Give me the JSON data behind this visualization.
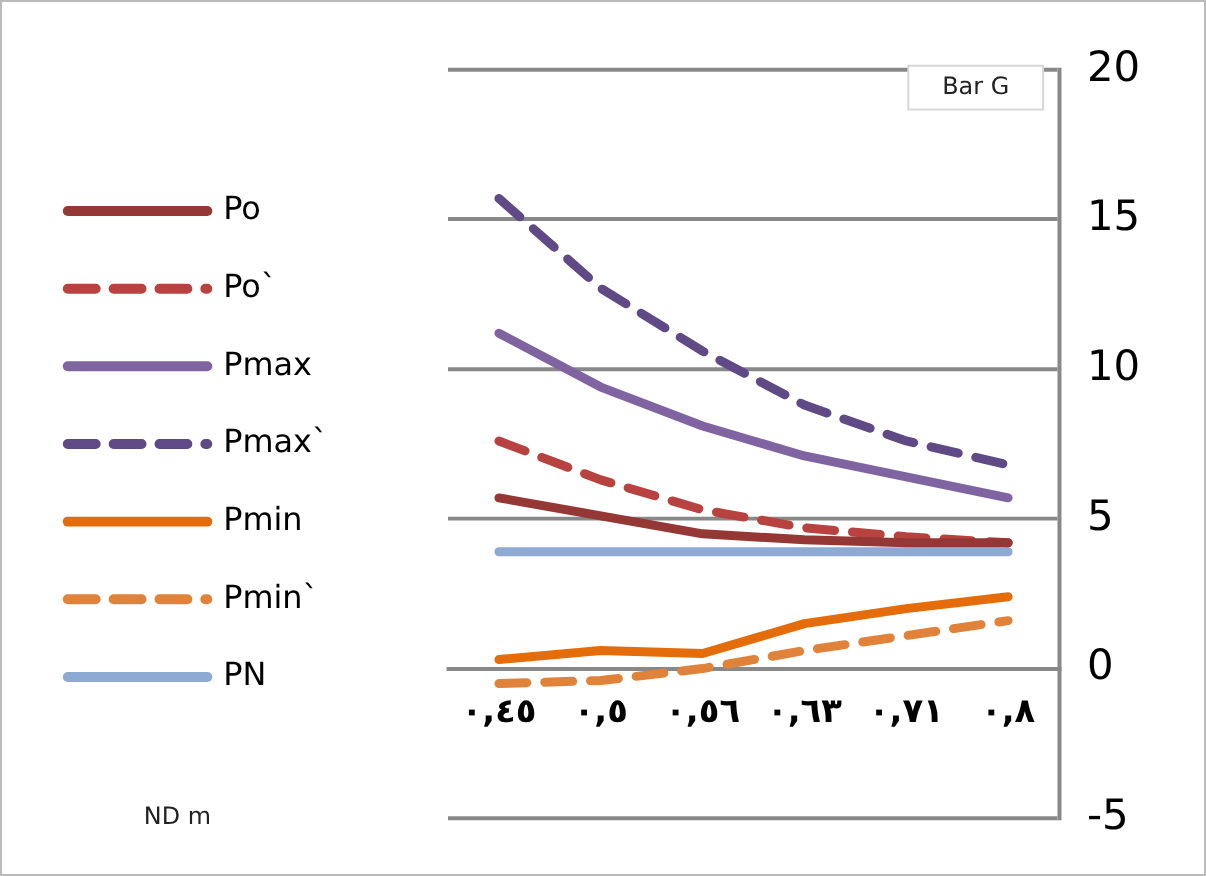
{
  "chart_data": {
    "type": "line",
    "annotations": [
      "ND m"
    ],
    "ylabel": "Bar G",
    "categories": [
      "٠,٤٥",
      "٠,٥",
      "٠,٥٦",
      "٠,٦٣",
      "٠,٧١",
      "٠,٨"
    ],
    "series": [
      {
        "name": "Po",
        "color": "#953735",
        "line_style": "solid",
        "values": [
          5.7,
          5.1,
          4.5,
          4.3,
          4.2,
          4.2
        ]
      },
      {
        "name": "Po`",
        "color": "#b7423f",
        "line_style": "dashed",
        "values": [
          7.6,
          6.3,
          5.3,
          4.7,
          4.4,
          4.2
        ]
      },
      {
        "name": "Pmax",
        "color": "#8064a2",
        "line_style": "solid",
        "values": [
          11.2,
          9.4,
          8.1,
          7.1,
          6.4,
          5.7
        ]
      },
      {
        "name": "Pmax`",
        "color": "#604a86",
        "line_style": "dashed",
        "values": [
          15.7,
          12.7,
          10.6,
          8.8,
          7.6,
          6.8
        ]
      },
      {
        "name": "Pmin",
        "color": "#e46c0a",
        "line_style": "solid",
        "values": [
          0.3,
          0.6,
          0.5,
          1.5,
          2.0,
          2.4
        ]
      },
      {
        "name": "Pmin`",
        "color": "#e0823a",
        "line_style": "dashed",
        "values": [
          -0.5,
          -0.4,
          0.0,
          0.6,
          1.1,
          1.6
        ]
      },
      {
        "name": "PN",
        "color": "#8eaad4",
        "line_style": "solid",
        "values": [
          3.9,
          3.9,
          3.9,
          3.9,
          3.9,
          3.9
        ]
      }
    ],
    "ylim": [
      -5,
      20
    ],
    "yticks": [
      -5,
      0,
      5,
      10,
      15,
      20
    ],
    "grid": "y",
    "legend": "left",
    "marker": "none"
  }
}
